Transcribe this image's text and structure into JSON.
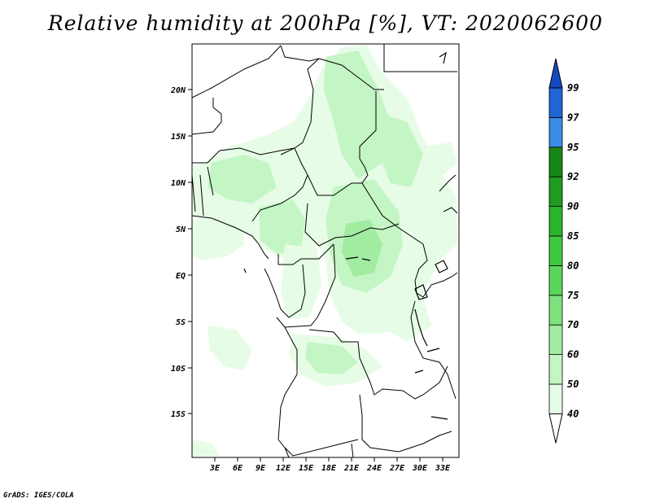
{
  "title": "Relative humidity at 200hPa [%], VT: 2020062600",
  "credit": "GrADS: IGES/COLA",
  "map": {
    "lon_range": [
      0,
      35
    ],
    "lat_range": [
      -20,
      25
    ],
    "lat_labels": [
      "20N",
      "15N",
      "10N",
      "5N",
      "EQ",
      "5S",
      "10S",
      "15S"
    ],
    "lon_labels": [
      "3E",
      "6E",
      "9E",
      "12E",
      "15E",
      "18E",
      "21E",
      "24E",
      "27E",
      "30E",
      "33E"
    ]
  },
  "colorbar": {
    "levels": [
      "40",
      "50",
      "60",
      "70",
      "75",
      "80",
      "85",
      "90",
      "92",
      "95",
      "97",
      "99"
    ],
    "colors": [
      "#ffffff",
      "#e6fce6",
      "#c4f5c4",
      "#a1eca1",
      "#7fe27f",
      "#5ad75a",
      "#3dc93d",
      "#29b529",
      "#1f9c1f",
      "#168616",
      "#3a8ce8",
      "#1f65d6",
      "#1648c2"
    ]
  }
}
